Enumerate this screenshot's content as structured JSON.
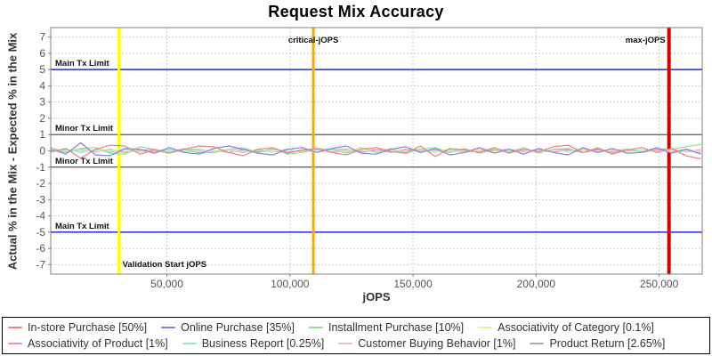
{
  "title": "Request Mix Accuracy",
  "axes": {
    "x": {
      "label": "jOPS",
      "ticks": [
        50000,
        100000,
        150000,
        200000,
        250000
      ],
      "tick_labels": [
        "50,000",
        "100,000",
        "150,000",
        "200,000",
        "250,000"
      ]
    },
    "y": {
      "label": "Actual % in the Mix - Expected % in the Mix",
      "ticks": [
        -7,
        -6,
        -5,
        -4,
        -3,
        -2,
        -1,
        0,
        1,
        2,
        3,
        4,
        5,
        6,
        7
      ]
    }
  },
  "reference_lines": {
    "horizontal": [
      {
        "y": 5,
        "color": "#0000CC",
        "label": "Main Tx Limit"
      },
      {
        "y": 1,
        "color": "#5A5A5A",
        "label": "Minor Tx Limit"
      },
      {
        "y": -1,
        "color": "#5A5A5A",
        "label": "Minor Tx Limit"
      },
      {
        "y": -5,
        "color": "#0000CC",
        "label": "Main Tx Limit"
      }
    ],
    "vertical": [
      {
        "x": 30500,
        "color": "#FFFF00",
        "width": 3,
        "label": "Validation Start jOPS",
        "label_pos": "bottom-right"
      },
      {
        "x": 109500,
        "color": "#FFA800",
        "width": 3,
        "label": "critical-jOPS",
        "label_pos": "top-center"
      },
      {
        "x": 254000,
        "color": "#D40000",
        "width": 4,
        "label": "max-jOPS",
        "label_pos": "top-left"
      }
    ]
  },
  "chart_data": {
    "type": "line",
    "title": "Request Mix Accuracy",
    "xlabel": "jOPS",
    "ylabel": "Actual % in the Mix - Expected % in the Mix",
    "xlim": [
      2800,
      267500
    ],
    "ylim": [
      -7.58,
      7.58
    ],
    "grid": true,
    "legend_position": "bottom",
    "x_start": 3000,
    "x_step": 6000,
    "series": [
      {
        "name": "In-store Purchase [50%]",
        "color": "#ED8181",
        "values": [
          -0.05,
          0.15,
          -0.45,
          0.1,
          0.35,
          0.3,
          -0.2,
          0.05,
          -0.15,
          0.1,
          0.3,
          0.25,
          -0.1,
          -0.3,
          0.1,
          0.2,
          -0.15,
          0.05,
          0.15,
          -0.1,
          -0.25,
          0.1,
          0.2,
          -0.05,
          -0.15,
          0.3,
          -0.35,
          0.15,
          0.05,
          -0.1,
          0.2,
          -0.15,
          0.1,
          -0.05,
          0.25,
          0.35,
          -0.1,
          0.15,
          -0.2,
          0.05,
          0.2,
          -0.1,
          0.15,
          -0.3,
          -0.5
        ]
      },
      {
        "name": "Online Purchase [35%]",
        "color": "#8181E8",
        "values": [
          0.1,
          -0.2,
          0.5,
          -0.25,
          -0.3,
          0.15,
          0.1,
          -0.15,
          0.2,
          -0.1,
          -0.2,
          0.15,
          0.3,
          0.1,
          -0.15,
          -0.25,
          0.1,
          0.2,
          -0.1,
          0.15,
          0.3,
          -0.15,
          -0.2,
          0.1,
          0.25,
          -0.1,
          0.15,
          -0.25,
          -0.1,
          0.2,
          -0.15,
          0.1,
          -0.2,
          0.15,
          -0.1,
          -0.25,
          0.2,
          -0.1,
          0.15,
          -0.15,
          -0.1,
          0.2,
          -0.15,
          0.1,
          -0.2
        ]
      },
      {
        "name": "Installment Purchase [10%]",
        "color": "#8FE08F",
        "values": [
          0.2,
          -0.1,
          0.15,
          0.2,
          -0.15,
          -0.2,
          0.25,
          0.1,
          -0.1,
          0.15,
          -0.15,
          -0.1,
          0.1,
          0.2,
          -0.1,
          0.15,
          -0.2,
          -0.1,
          0.15,
          0.1,
          -0.15,
          0.2,
          -0.1,
          0.15,
          -0.15,
          0.1,
          0.2,
          -0.1,
          0.15,
          -0.15,
          0.1,
          -0.1,
          0.2,
          -0.15,
          0.1,
          0.15,
          -0.1,
          0.2,
          -0.15,
          0.1,
          -0.1,
          0.15,
          0.1,
          0.25,
          0.4
        ]
      },
      {
        "name": "Associativity of Category [0.1%]",
        "color": "#F0F088",
        "values": [
          0.02,
          -0.03,
          0.04,
          -0.02,
          0.03,
          0.02,
          -0.04,
          0.03,
          -0.02,
          0.04,
          -0.03,
          0.02,
          0.03,
          -0.02,
          0.04,
          -0.03,
          0.02,
          -0.04,
          0.03,
          -0.02,
          0.02,
          0.03,
          -0.03,
          0.02,
          -0.02,
          0.04,
          -0.03,
          0.02,
          -0.02,
          0.03,
          -0.04,
          0.02,
          0.03,
          -0.02,
          0.02,
          -0.03,
          0.04,
          -0.02,
          0.03,
          -0.03,
          0.02,
          -0.02,
          0.03,
          -0.02,
          0.02
        ]
      },
      {
        "name": "Associativity of Product [1%]",
        "color": "#F08CE0",
        "values": [
          0.05,
          -0.08,
          0.1,
          -0.05,
          0.08,
          -0.1,
          0.05,
          0.08,
          -0.05,
          0.1,
          -0.08,
          0.05,
          -0.1,
          0.08,
          -0.05,
          0.1,
          -0.08,
          0.05,
          0.08,
          -0.1,
          0.05,
          -0.05,
          0.08,
          -0.08,
          0.1,
          -0.05,
          0.05,
          -0.08,
          0.08,
          -0.1,
          0.05,
          0.08,
          -0.05,
          0.1,
          -0.08,
          0.05,
          -0.1,
          0.08,
          -0.05,
          0.08,
          -0.08,
          0.05,
          0.1,
          -0.05,
          0.08
        ]
      },
      {
        "name": "Business Report [0.25%]",
        "color": "#8AEDE2",
        "values": [
          -0.04,
          0.06,
          -0.08,
          0.05,
          -0.06,
          0.08,
          -0.05,
          0.04,
          0.06,
          -0.06,
          0.05,
          -0.04,
          0.08,
          -0.06,
          0.04,
          -0.08,
          0.06,
          -0.04,
          0.05,
          0.06,
          -0.05,
          0.04,
          -0.06,
          0.08,
          -0.04,
          0.06,
          -0.08,
          0.04,
          0.05,
          -0.06,
          0.06,
          -0.04,
          0.08,
          -0.05,
          0.04,
          -0.06,
          0.05,
          0.06,
          -0.08,
          0.04,
          0.06,
          -0.05,
          0.04,
          -0.06,
          0.05
        ]
      },
      {
        "name": "Customer Buying Behavior [1%]",
        "color": "#F8BCBC",
        "values": [
          0.08,
          -0.1,
          0.12,
          -0.08,
          0.1,
          -0.12,
          0.08,
          -0.06,
          0.1,
          -0.08,
          0.12,
          -0.1,
          0.06,
          0.08,
          -0.12,
          0.1,
          -0.08,
          0.06,
          -0.1,
          0.08,
          0.12,
          -0.06,
          0.08,
          -0.1,
          0.06,
          0.1,
          -0.08,
          0.12,
          -0.06,
          0.08,
          -0.12,
          0.06,
          0.1,
          -0.08,
          0.08,
          -0.06,
          0.12,
          -0.1,
          0.06,
          0.08,
          -0.08,
          0.1,
          -0.06,
          0.08,
          -0.1
        ]
      },
      {
        "name": "Product Return [2.65%]",
        "color": "#ACACAC",
        "values": [
          -0.06,
          0.08,
          -0.1,
          0.06,
          -0.08,
          0.1,
          -0.06,
          0.08,
          -0.08,
          0.06,
          0.1,
          -0.08,
          0.06,
          -0.1,
          0.08,
          -0.06,
          0.1,
          -0.08,
          0.06,
          -0.06,
          0.08,
          -0.1,
          0.06,
          0.08,
          -0.08,
          0.1,
          -0.06,
          0.08,
          -0.1,
          0.06,
          0.08,
          -0.06,
          0.1,
          -0.08,
          0.06,
          0.08,
          -0.1,
          0.06,
          -0.08,
          0.1,
          -0.06,
          0.08,
          -0.06,
          0.1,
          -0.08
        ]
      }
    ]
  },
  "legend_rows": [
    [
      0,
      1,
      2,
      3
    ],
    [
      4,
      5,
      6,
      7
    ]
  ],
  "style": {
    "grid_color": "#CCCCCC",
    "plot_border_color": "#808080",
    "tick_label_color": "#555555",
    "annotation_color": "#111111"
  }
}
